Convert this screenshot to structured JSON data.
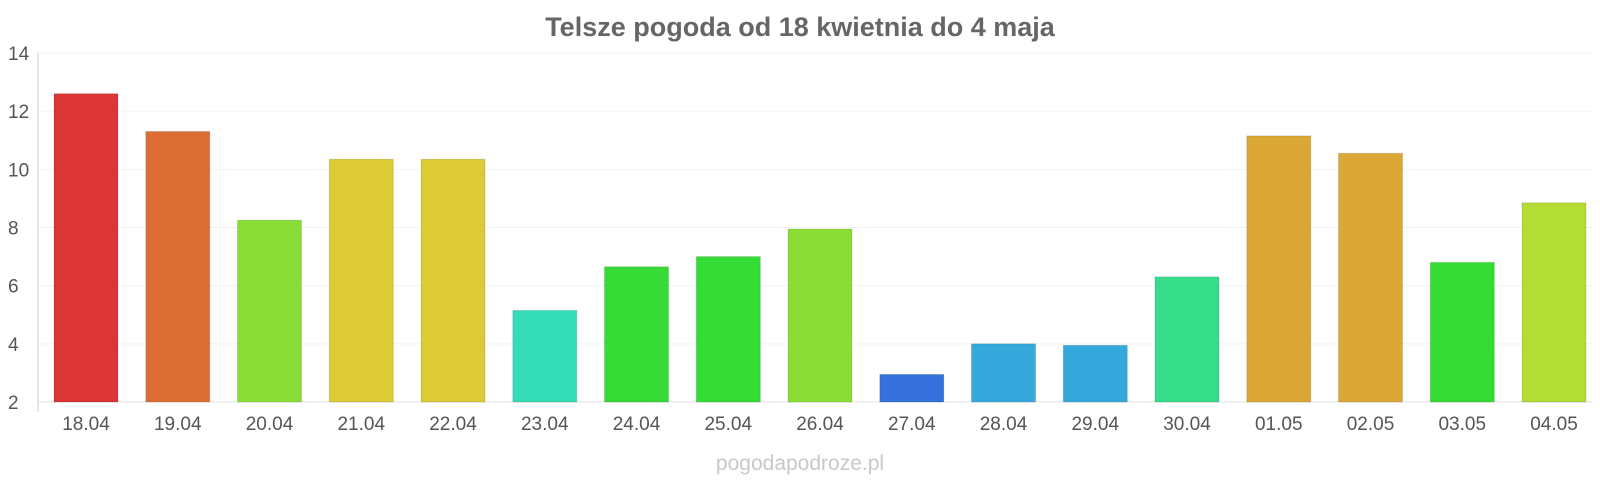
{
  "chart_data": {
    "type": "bar",
    "title": "Telsze pogoda od 18 kwietnia do 4 maja",
    "xlabel": "",
    "ylabel": "",
    "ylim": [
      2,
      14
    ],
    "yticks": [
      2,
      4,
      6,
      8,
      10,
      12,
      14
    ],
    "grid": true,
    "legend": "none",
    "categories": [
      "18.04",
      "19.04",
      "20.04",
      "21.04",
      "22.04",
      "23.04",
      "24.04",
      "25.04",
      "26.04",
      "27.04",
      "28.04",
      "29.04",
      "30.04",
      "01.05",
      "02.05",
      "03.05",
      "04.05"
    ],
    "values": [
      12.6,
      11.3,
      8.25,
      10.35,
      10.35,
      5.15,
      6.65,
      7.0,
      7.95,
      2.95,
      4.0,
      3.95,
      6.3,
      11.15,
      10.55,
      6.8,
      8.85
    ],
    "colors": [
      "#dc3535",
      "#dc6e35",
      "#8add35",
      "#dccb35",
      "#dccb35",
      "#35dcb8",
      "#35dc35",
      "#35dc35",
      "#8add35",
      "#3570dc",
      "#35a8dc",
      "#35a8dc",
      "#35dc8a",
      "#dca835",
      "#dca835",
      "#35dc35",
      "#b3dc35"
    ]
  },
  "watermark": "pogodapodroze.pl"
}
